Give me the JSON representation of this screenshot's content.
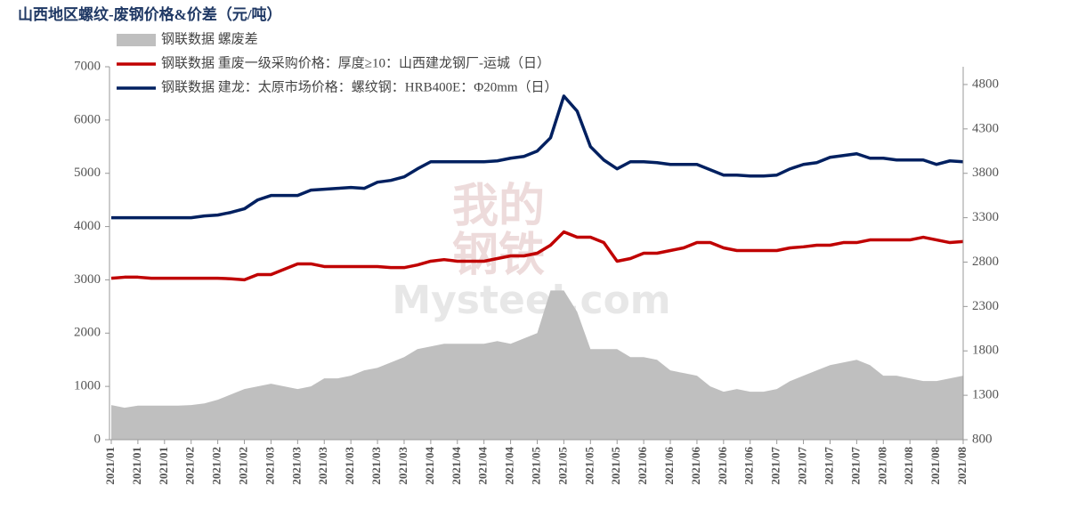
{
  "chart_data": {
    "type": "line",
    "title": "山西地区螺纹-废钢价格&价差（元/吨）",
    "watermark": [
      "我的",
      "钢铁",
      "Mysteel.com"
    ],
    "categories": [
      "2021/01",
      null,
      "2021/01",
      null,
      "2021/01",
      null,
      "2021/02",
      null,
      "2021/02",
      null,
      "2021/02",
      null,
      "2021/03",
      null,
      "2021/03",
      null,
      "2021/03",
      null,
      "2021/03",
      null,
      "2021/03",
      null,
      "2021/03",
      null,
      "2021/04",
      null,
      "2021/04",
      null,
      "2021/04",
      null,
      "2021/04",
      null,
      "2021/05",
      null,
      "2021/05",
      null,
      "2021/05",
      null,
      "2021/05",
      null,
      "2021/06",
      null,
      "2021/06",
      null,
      "2021/06",
      null,
      "2021/06",
      null,
      "2021/06",
      null,
      "2021/07",
      null,
      "2021/07",
      null,
      "2021/07",
      null,
      "2021/07",
      null,
      "2021/08",
      null,
      "2021/08",
      null,
      "2021/08",
      null,
      "2021/08"
    ],
    "series": [
      {
        "name": "钢联数据 螺废差",
        "kind": "area",
        "color": "#bfbfbf",
        "values": [
          650,
          600,
          640,
          640,
          640,
          640,
          650,
          680,
          750,
          850,
          950,
          1000,
          1050,
          1000,
          950,
          1000,
          1150,
          1150,
          1200,
          1300,
          1350,
          1450,
          1550,
          1700,
          1750,
          1800,
          1800,
          1800,
          1800,
          1850,
          1800,
          1900,
          2000,
          2800,
          2800,
          2400,
          1700,
          1700,
          1700,
          1550,
          1550,
          1500,
          1300,
          1250,
          1200,
          1000,
          900,
          950,
          900,
          900,
          950,
          1100,
          1200,
          1300,
          1400,
          1450,
          1500,
          1400,
          1200,
          1200,
          1150,
          1100,
          1100,
          1150,
          1200
        ]
      },
      {
        "name": "钢联数据 重废一级采购价格：厚度≥10：山西建龙钢厂-运城（日）",
        "kind": "line",
        "color": "#c00000",
        "values": [
          3030,
          3050,
          3050,
          3030,
          3030,
          3030,
          3030,
          3030,
          3030,
          3020,
          3000,
          3100,
          3100,
          3200,
          3300,
          3300,
          3250,
          3250,
          3250,
          3250,
          3250,
          3230,
          3230,
          3280,
          3350,
          3380,
          3350,
          3350,
          3350,
          3400,
          3450,
          3450,
          3500,
          3650,
          3900,
          3800,
          3800,
          3700,
          3350,
          3400,
          3500,
          3500,
          3550,
          3600,
          3700,
          3700,
          3600,
          3550,
          3550,
          3550,
          3550,
          3600,
          3620,
          3650,
          3650,
          3700,
          3700,
          3750,
          3750,
          3750,
          3750,
          3800,
          3750,
          3700,
          3720
        ]
      },
      {
        "name": "钢联数据 建龙：太原市场价格：螺纹钢：HRB400E：Φ20mm（日）",
        "kind": "line",
        "axis": "y2",
        "color": "#002060",
        "values": [
          3300,
          3300,
          3300,
          3300,
          3300,
          3300,
          3300,
          3320,
          3330,
          3360,
          3400,
          3500,
          3550,
          3550,
          3550,
          3610,
          3620,
          3630,
          3640,
          3630,
          3700,
          3720,
          3760,
          3850,
          3930,
          3930,
          3930,
          3930,
          3930,
          3940,
          3970,
          3990,
          4050,
          4200,
          4670,
          4500,
          4100,
          3950,
          3850,
          3930,
          3930,
          3920,
          3900,
          3900,
          3900,
          3840,
          3780,
          3780,
          3770,
          3770,
          3780,
          3850,
          3900,
          3920,
          3980,
          4000,
          4020,
          3970,
          3970,
          3950,
          3950,
          3950,
          3900,
          3940,
          3930
        ]
      }
    ],
    "ylim": [
      0,
      7000
    ],
    "yticks": [
      0,
      1000,
      2000,
      3000,
      4000,
      5000,
      6000,
      7000
    ],
    "y2lim": [
      800,
      5000
    ],
    "y2ticks": [
      800,
      1300,
      1800,
      2300,
      2800,
      3300,
      3800,
      4300,
      4800
    ]
  }
}
